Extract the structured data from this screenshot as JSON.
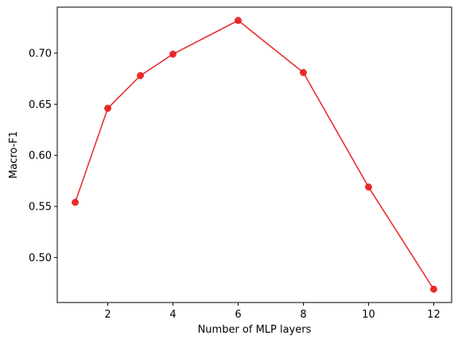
{
  "chart_data": {
    "type": "line",
    "title": "",
    "xlabel": "Number of MLP layers",
    "ylabel": "Macro-F1",
    "x": [
      1,
      2,
      3,
      4,
      6,
      8,
      10,
      12
    ],
    "series": [
      {
        "values": [
          0.554,
          0.646,
          0.678,
          0.699,
          0.732,
          0.681,
          0.569,
          0.469
        ],
        "color": "#e8191a",
        "marker": "circle"
      }
    ],
    "xlim": [
      0.45,
      12.55
    ],
    "ylim": [
      0.456,
      0.745
    ],
    "xticks": [
      2,
      4,
      6,
      8,
      10,
      12
    ],
    "xtick_labels": [
      "2",
      "4",
      "6",
      "8",
      "10",
      "12"
    ],
    "yticks": [
      0.5,
      0.55,
      0.6,
      0.65,
      0.7
    ],
    "ytick_labels": [
      "0.50",
      "0.55",
      "0.60",
      "0.65",
      "0.70"
    ],
    "grid": false,
    "legend": "none"
  }
}
